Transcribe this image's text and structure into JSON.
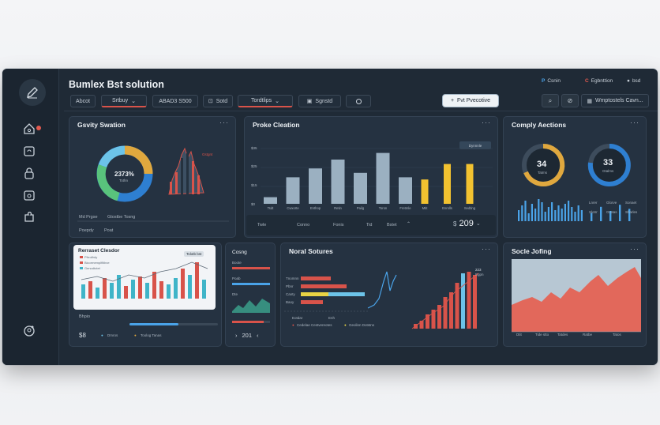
{
  "app": {
    "title": "Bumlex Bst solution"
  },
  "toolbar": {
    "items": [
      "Abcot",
      "Srtbuy",
      "ABAD3 S500",
      "Sotd",
      "Tordtlips",
      "Sgnstd"
    ],
    "primary_label": "Fvt Pvecotive"
  },
  "topright": {
    "item1": "Csnin",
    "item2": "Egbnttion",
    "item3": "bsd",
    "button": "Wmptostels Cavn..."
  },
  "cards": {
    "gravity": {
      "title": "Gsvity Swation",
      "donut_value": "2373%",
      "donut_sub": "Tothn",
      "legend_badge": "Gstgnt",
      "foot1": "Md Prgse",
      "foot2": "Gtostbe Tosng",
      "foot3": "Poepdy",
      "foot4": "Poat",
      "donut_colors": [
        "#e0a83e",
        "#6cc3e8",
        "#59c37c",
        "#2e7fd1"
      ]
    },
    "proke": {
      "title": "Proke Cleation",
      "badge": "Dynnnle",
      "y_labels": [
        "$35",
        "$25",
        "$15",
        "$0"
      ],
      "footer_labels": [
        "Twle",
        "Conno",
        "Fonis",
        "Tid",
        "Bstet"
      ],
      "footer_value": "209",
      "chart_data": {
        "type": "bar",
        "categories": [
          "Tsdt",
          "Cwxorte",
          "Enthop",
          "Retin",
          "Pailg",
          "Toron",
          "Fretmle",
          "Mtit",
          "Enrolls",
          "Sedting"
        ],
        "values": [
          3,
          12,
          16,
          20,
          14,
          23,
          12,
          11,
          18,
          18
        ]
      }
    },
    "comply": {
      "title": "Comply Aections",
      "gauge1": "34",
      "gauge1_sub": "Tatms",
      "gauge2": "33",
      "gauge2_sub": "Gtalms",
      "legend": [
        "Lnrer",
        "Glorve",
        "Sonaet",
        "Slotrr",
        "Grotas",
        "Sharles"
      ]
    },
    "reraset": {
      "title": "Rerraset Clesdor",
      "badge": "Tolotb bst",
      "legend": [
        "Pfrrolfrdy",
        "Bicormemplfltibve",
        "Genodtotet"
      ],
      "foot_title": "Bhpio",
      "value": "$8",
      "legend1": "Dmros",
      "legend2": "Toolog Tanas"
    },
    "side_mini": {
      "title": "Cosng",
      "rows": [
        "Boote",
        "Poab",
        "Dte"
      ],
      "nav_value": "201"
    },
    "noral": {
      "title": "Noral Sotures",
      "left_labels": [
        "Tnomnn",
        "Pbnr",
        "Canty",
        "Baoy"
      ],
      "axis_label": "Eotdar",
      "axis_label2": "Enh",
      "legend1": "Cedelae Cestvereotes",
      "legend2": "Geolinn Dotstns",
      "mini_value": "223",
      "mini_sub": "Egpn"
    },
    "social": {
      "title": "Socle Jofing",
      "x_labels": [
        "Dtit",
        "Tide stto",
        "Tatdes",
        "Ratbe",
        "Tatos"
      ]
    }
  }
}
